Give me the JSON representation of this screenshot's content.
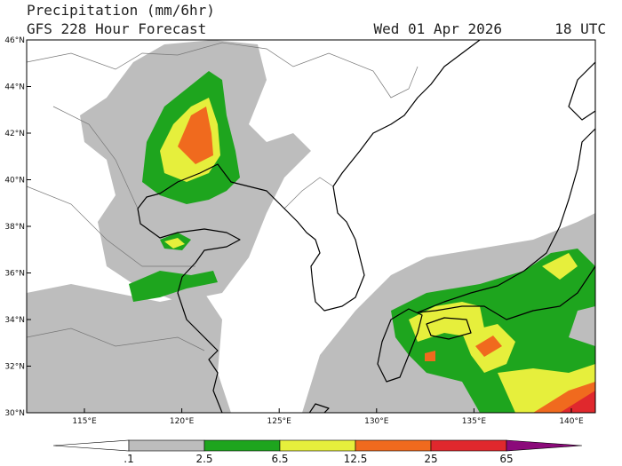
{
  "header": {
    "title": "Precipitation (mm/6hr)",
    "subtitle": "GFS 228 Hour Forecast",
    "date": "Wed 01 Apr 2026",
    "time": "18 UTC"
  },
  "map": {
    "lat_labels": [
      "30°N",
      "32°N",
      "34°N",
      "36°N",
      "38°N",
      "40°N",
      "42°N",
      "44°N",
      "46°N"
    ],
    "lon_labels": [
      "115°E",
      "120°E",
      "125°E",
      "130°E",
      "135°E",
      "140°E"
    ]
  },
  "colorbar": {
    "labels": [
      ".1",
      "2.5",
      "6.5",
      "12.5",
      "25",
      "65"
    ]
  }
}
